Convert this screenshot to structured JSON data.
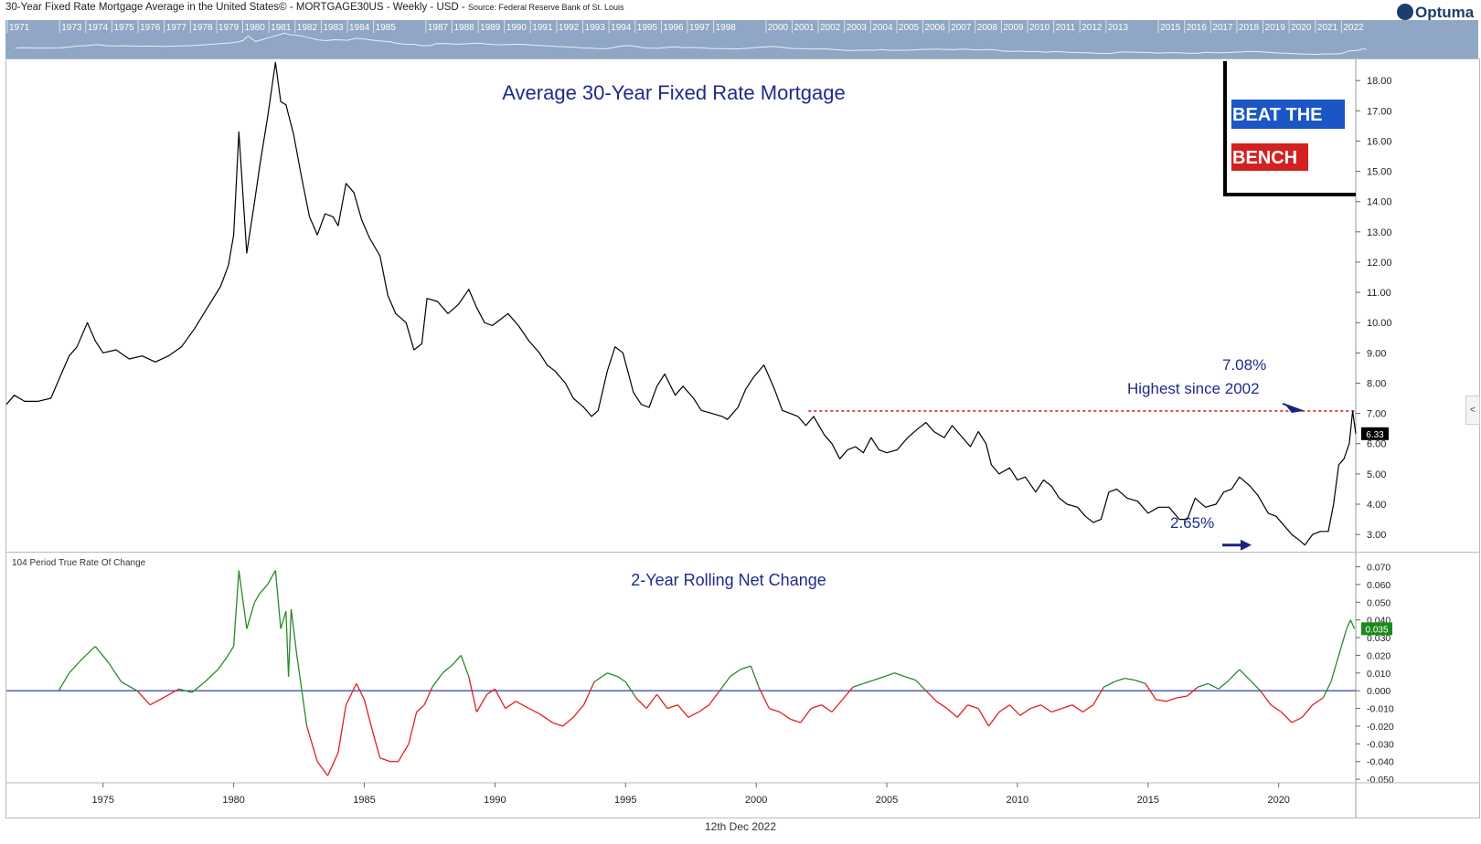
{
  "header": {
    "title": "30-Year Fixed Rate Mortgage Average in the United States© - MORTGAGE30US - Weekly - USD -",
    "source": "Source: Federal Reserve Bank of St. Louis"
  },
  "logo": {
    "text": "Optuma",
    "icon": "optuma-circle-icon"
  },
  "navigator": {
    "years": [
      "1971",
      "1973",
      "1974",
      "1975",
      "1976",
      "1977",
      "1978",
      "1979",
      "1980",
      "1981",
      "1982",
      "1983",
      "1984",
      "1985",
      "1987",
      "1988",
      "1989",
      "1990",
      "1991",
      "1992",
      "1993",
      "1994",
      "1995",
      "1996",
      "1997",
      "1998",
      "2000",
      "2001",
      "2002",
      "2003",
      "2004",
      "2005",
      "2006",
      "2007",
      "2008",
      "2009",
      "2010",
      "2011",
      "2012",
      "2013",
      "2015",
      "2016",
      "2017",
      "2018",
      "2019",
      "2020",
      "2021",
      "2022"
    ]
  },
  "brand_badge": {
    "line1": "BEAT THE",
    "line2": "BENCH",
    "line1_color": "#1a56c4",
    "line2_color": "#d32020"
  },
  "footer": {
    "date": "12th Dec 2022"
  },
  "side_tab": {
    "glyph": "<"
  },
  "chart_data": [
    {
      "type": "line",
      "title": "Average 30-Year Fixed Rate Mortgage",
      "x_unit": "year",
      "xlim": [
        1971.3,
        2022.95
      ],
      "ylim": [
        2.4,
        18.7
      ],
      "y_ticks": [
        "3.00",
        "4.00",
        "5.00",
        "6.00",
        "7.00",
        "8.00",
        "9.00",
        "10.00",
        "11.00",
        "12.00",
        "13.00",
        "14.00",
        "15.00",
        "16.00",
        "17.00",
        "18.00"
      ],
      "x_ticks": [
        "1975",
        "1980",
        "1985",
        "1990",
        "1995",
        "2000",
        "2005",
        "2010",
        "2015",
        "2020"
      ],
      "series": [
        {
          "color": "#000000",
          "x": [
            1971.3,
            1971.6,
            1972.0,
            1972.5,
            1973.0,
            1973.5,
            1973.7,
            1974.0,
            1974.4,
            1974.7,
            1975.0,
            1975.5,
            1976.0,
            1976.5,
            1977.0,
            1977.5,
            1978.0,
            1978.5,
            1979.0,
            1979.5,
            1979.8,
            1980.0,
            1980.2,
            1980.5,
            1980.8,
            1981.0,
            1981.3,
            1981.6,
            1981.8,
            1982.0,
            1982.3,
            1982.6,
            1982.9,
            1983.2,
            1983.5,
            1983.8,
            1984.0,
            1984.3,
            1984.6,
            1984.9,
            1985.2,
            1985.6,
            1985.9,
            1986.2,
            1986.6,
            1986.9,
            1987.2,
            1987.4,
            1987.8,
            1988.2,
            1988.6,
            1989.0,
            1989.3,
            1989.6,
            1989.9,
            1990.2,
            1990.5,
            1990.9,
            1991.3,
            1991.7,
            1992.0,
            1992.3,
            1992.7,
            1993.0,
            1993.4,
            1993.7,
            1993.95,
            1994.3,
            1994.6,
            1994.9,
            1995.3,
            1995.6,
            1995.9,
            1996.2,
            1996.5,
            1996.9,
            1997.2,
            1997.6,
            1997.9,
            1998.3,
            1998.7,
            1998.9,
            1999.3,
            1999.6,
            1999.9,
            2000.3,
            2000.7,
            2001.0,
            2001.3,
            2001.6,
            2001.9,
            2002.2,
            2002.6,
            2002.9,
            2003.2,
            2003.5,
            2003.8,
            2004.1,
            2004.4,
            2004.7,
            2005.0,
            2005.4,
            2005.8,
            2006.2,
            2006.5,
            2006.8,
            2007.2,
            2007.5,
            2007.9,
            2008.2,
            2008.5,
            2008.8,
            2009.0,
            2009.3,
            2009.7,
            2010.0,
            2010.3,
            2010.7,
            2011.0,
            2011.3,
            2011.6,
            2011.9,
            2012.3,
            2012.6,
            2012.9,
            2013.2,
            2013.5,
            2013.8,
            2014.2,
            2014.6,
            2015.0,
            2015.4,
            2015.8,
            2016.2,
            2016.5,
            2016.8,
            2017.2,
            2017.6,
            2017.9,
            2018.2,
            2018.5,
            2018.9,
            2019.2,
            2019.6,
            2019.9,
            2020.2,
            2020.5,
            2020.8,
            2021.0,
            2021.3,
            2021.6,
            2021.9,
            2022.1,
            2022.3,
            2022.5,
            2022.7,
            2022.83,
            2022.95
          ],
          "y": [
            7.3,
            7.6,
            7.4,
            7.4,
            7.5,
            8.5,
            8.9,
            9.2,
            10.0,
            9.4,
            9.0,
            9.1,
            8.8,
            8.9,
            8.7,
            8.9,
            9.2,
            9.8,
            10.5,
            11.2,
            11.9,
            12.9,
            16.3,
            12.3,
            14.0,
            15.2,
            16.8,
            18.6,
            17.3,
            17.2,
            16.2,
            14.8,
            13.5,
            12.9,
            13.6,
            13.5,
            13.2,
            14.6,
            14.3,
            13.4,
            12.8,
            12.2,
            10.9,
            10.3,
            10.0,
            9.1,
            9.3,
            10.8,
            10.7,
            10.3,
            10.6,
            11.1,
            10.5,
            10.0,
            9.9,
            10.1,
            10.3,
            9.9,
            9.4,
            9.0,
            8.6,
            8.4,
            8.0,
            7.5,
            7.2,
            6.9,
            7.1,
            8.4,
            9.2,
            9.0,
            7.7,
            7.3,
            7.2,
            7.9,
            8.3,
            7.6,
            7.9,
            7.5,
            7.1,
            7.0,
            6.9,
            6.8,
            7.2,
            7.8,
            8.2,
            8.6,
            7.8,
            7.1,
            7.0,
            6.9,
            6.6,
            6.9,
            6.3,
            6.0,
            5.5,
            5.8,
            5.9,
            5.7,
            6.2,
            5.8,
            5.7,
            5.8,
            6.2,
            6.5,
            6.7,
            6.4,
            6.2,
            6.6,
            6.2,
            5.9,
            6.4,
            6.0,
            5.3,
            5.0,
            5.2,
            4.8,
            4.9,
            4.4,
            4.8,
            4.6,
            4.2,
            4.0,
            3.9,
            3.6,
            3.4,
            3.5,
            4.4,
            4.5,
            4.2,
            4.1,
            3.7,
            3.9,
            3.9,
            3.5,
            3.5,
            4.2,
            3.9,
            4.0,
            4.4,
            4.5,
            4.9,
            4.6,
            4.3,
            3.7,
            3.6,
            3.3,
            3.0,
            2.8,
            2.65,
            3.0,
            3.1,
            3.1,
            4.0,
            5.3,
            5.5,
            6.0,
            7.08,
            6.33
          ]
        }
      ],
      "reference_line": {
        "value": 7.08,
        "from_x": 2002.0,
        "color": "#cc0000"
      },
      "annotations": [
        {
          "text": "7.08%"
        },
        {
          "text": "Highest since 2002"
        },
        {
          "text": "2.65%"
        }
      ],
      "last_value_label": "6.33"
    },
    {
      "type": "line",
      "title": "2-Year Rolling Net Change",
      "indicator_label": "104 Period True Rate Of Change",
      "x_unit": "year",
      "xlim": [
        1971.3,
        2022.95
      ],
      "ylim": [
        -0.052,
        0.078
      ],
      "y_ticks": [
        "0.070",
        "0.060",
        "0.050",
        "0.040",
        "0.030",
        "0.020",
        "0.010",
        "0.000",
        "-0.010",
        "-0.020",
        "-0.030",
        "-0.040",
        "-0.050"
      ],
      "zero_line": 0,
      "colors": {
        "positive": "#2a8a2a",
        "negative": "#e02020",
        "zero_line": "#1a2a9a"
      },
      "series": [
        {
          "x": [
            1973.3,
            1973.7,
            1974.2,
            1974.7,
            1975.2,
            1975.7,
            1976.3,
            1976.8,
            1977.3,
            1977.9,
            1978.4,
            1978.9,
            1979.4,
            1979.7,
            1980.0,
            1980.2,
            1980.5,
            1980.8,
            1981.0,
            1981.3,
            1981.6,
            1981.8,
            1982.0,
            1982.1,
            1982.2,
            1982.4,
            1982.8,
            1983.2,
            1983.6,
            1984.0,
            1984.3,
            1984.7,
            1985.0,
            1985.3,
            1985.6,
            1986.0,
            1986.3,
            1986.7,
            1987.0,
            1987.3,
            1987.6,
            1988.0,
            1988.4,
            1988.7,
            1989.0,
            1989.3,
            1989.7,
            1990.0,
            1990.4,
            1990.8,
            1991.3,
            1991.7,
            1992.2,
            1992.6,
            1993.0,
            1993.4,
            1993.8,
            1994.3,
            1994.7,
            1995.0,
            1995.4,
            1995.8,
            1996.2,
            1996.6,
            1997.0,
            1997.4,
            1997.8,
            1998.2,
            1998.6,
            1999.0,
            1999.4,
            1999.8,
            2000.1,
            2000.5,
            2000.9,
            2001.3,
            2001.7,
            2002.1,
            2002.5,
            2002.9,
            2003.3,
            2003.7,
            2004.1,
            2004.5,
            2004.9,
            2005.3,
            2005.7,
            2006.1,
            2006.5,
            2006.9,
            2007.3,
            2007.7,
            2008.1,
            2008.5,
            2008.9,
            2009.3,
            2009.7,
            2010.1,
            2010.5,
            2010.9,
            2011.3,
            2011.7,
            2012.1,
            2012.5,
            2012.9,
            2013.3,
            2013.7,
            2014.1,
            2014.5,
            2014.9,
            2015.3,
            2015.7,
            2016.1,
            2016.5,
            2016.9,
            2017.3,
            2017.7,
            2018.1,
            2018.5,
            2018.9,
            2019.3,
            2019.7,
            2020.1,
            2020.5,
            2020.9,
            2021.3,
            2021.7,
            2022.0,
            2022.2,
            2022.4,
            2022.6,
            2022.75,
            2022.9
          ],
          "y": [
            0.0,
            0.01,
            0.018,
            0.025,
            0.016,
            0.005,
            0.0,
            -0.008,
            -0.004,
            0.001,
            -0.001,
            0.005,
            0.012,
            0.018,
            0.025,
            0.068,
            0.035,
            0.05,
            0.055,
            0.06,
            0.068,
            0.035,
            0.045,
            0.008,
            0.046,
            0.022,
            -0.02,
            -0.04,
            -0.048,
            -0.035,
            -0.008,
            0.004,
            -0.005,
            -0.022,
            -0.038,
            -0.04,
            -0.04,
            -0.03,
            -0.012,
            -0.008,
            0.002,
            0.01,
            0.015,
            0.02,
            0.008,
            -0.012,
            -0.002,
            0.001,
            -0.01,
            -0.006,
            -0.01,
            -0.013,
            -0.018,
            -0.02,
            -0.015,
            -0.008,
            0.005,
            0.01,
            0.008,
            0.005,
            -0.004,
            -0.01,
            -0.002,
            -0.01,
            -0.008,
            -0.015,
            -0.012,
            -0.008,
            0.0,
            0.008,
            0.012,
            0.014,
            0.002,
            -0.01,
            -0.012,
            -0.016,
            -0.018,
            -0.01,
            -0.008,
            -0.012,
            -0.005,
            0.002,
            0.004,
            0.006,
            0.008,
            0.01,
            0.008,
            0.006,
            0.0,
            -0.006,
            -0.01,
            -0.015,
            -0.008,
            -0.01,
            -0.02,
            -0.012,
            -0.008,
            -0.014,
            -0.01,
            -0.008,
            -0.012,
            -0.01,
            -0.008,
            -0.012,
            -0.008,
            0.002,
            0.005,
            0.007,
            0.006,
            0.004,
            -0.005,
            -0.006,
            -0.004,
            -0.003,
            0.002,
            0.004,
            0.001,
            0.006,
            0.012,
            0.006,
            0.0,
            -0.008,
            -0.012,
            -0.018,
            -0.015,
            -0.008,
            -0.004,
            0.005,
            0.015,
            0.025,
            0.035,
            0.04,
            0.035
          ]
        }
      ],
      "last_value_label": "0.035"
    }
  ]
}
